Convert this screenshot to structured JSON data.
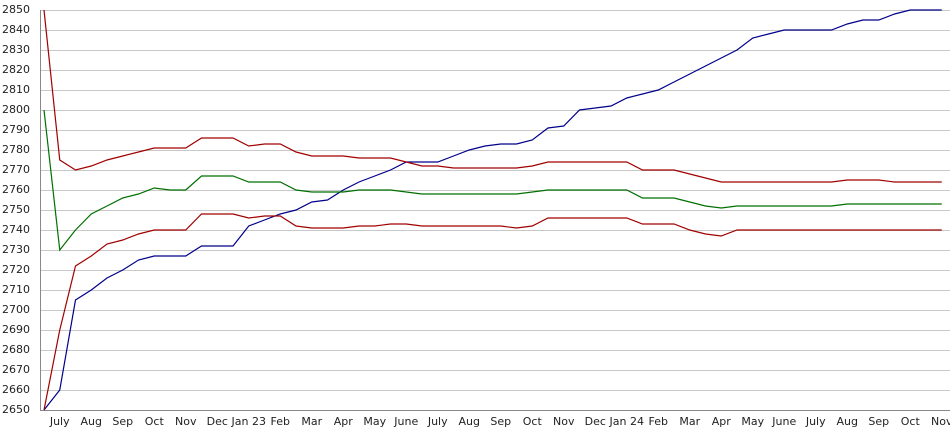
{
  "chart_data": {
    "type": "line",
    "categories": [
      null,
      "July",
      null,
      "Aug",
      null,
      "Sep",
      null,
      "Oct",
      null,
      "Nov",
      null,
      "Dec",
      null,
      "Jan 23",
      null,
      "Feb",
      null,
      "Mar",
      null,
      "Apr",
      null,
      "May",
      null,
      "June",
      null,
      "July",
      null,
      "Aug",
      null,
      "Sep",
      null,
      "Oct",
      null,
      "Nov",
      null,
      "Dec",
      null,
      "Jan 24",
      null,
      "Feb",
      null,
      "Mar",
      null,
      "Apr",
      null,
      "May",
      null,
      "June",
      null,
      "July",
      null,
      "Aug",
      null,
      "Sep",
      null,
      "Oct",
      null,
      "Nov"
    ],
    "series": [
      {
        "color": "#00008b",
        "values": [
          2650,
          2660,
          2705,
          2710,
          2716,
          2720,
          2725,
          2727,
          2727,
          2727,
          2732,
          2732,
          2732,
          2742,
          2745,
          2748,
          2750,
          2754,
          2755,
          2760,
          2764,
          2767,
          2770,
          2774,
          2774,
          2774,
          2777,
          2780,
          2782,
          2783,
          2783,
          2785,
          2791,
          2792,
          2800,
          2801,
          2802,
          2806,
          2808,
          2810,
          2814,
          2818,
          2822,
          2826,
          2830,
          2836,
          2838,
          2840,
          2840,
          2840,
          2840,
          2843,
          2845,
          2845,
          2848,
          2850,
          2850,
          2850
        ]
      },
      {
        "color": "#a00000",
        "values": [
          2850,
          2775,
          2770,
          2772,
          2775,
          2777,
          2779,
          2781,
          2781,
          2781,
          2786,
          2786,
          2786,
          2782,
          2783,
          2783,
          2779,
          2777,
          2777,
          2777,
          2776,
          2776,
          2776,
          2774,
          2772,
          2772,
          2771,
          2771,
          2771,
          2771,
          2771,
          2772,
          2774,
          2774,
          2774,
          2774,
          2774,
          2774,
          2770,
          2770,
          2770,
          2768,
          2766,
          2764,
          2764,
          2764,
          2764,
          2764,
          2764,
          2764,
          2764,
          2765,
          2765,
          2765,
          2764,
          2764,
          2764,
          2764
        ]
      },
      {
        "color": "#007000",
        "values": [
          2800,
          2730,
          2740,
          2748,
          2752,
          2756,
          2758,
          2761,
          2760,
          2760,
          2767,
          2767,
          2767,
          2764,
          2764,
          2764,
          2760,
          2759,
          2759,
          2759,
          2760,
          2760,
          2760,
          2759,
          2758,
          2758,
          2758,
          2758,
          2758,
          2758,
          2758,
          2759,
          2760,
          2760,
          2760,
          2760,
          2760,
          2760,
          2756,
          2756,
          2756,
          2754,
          2752,
          2751,
          2752,
          2752,
          2752,
          2752,
          2752,
          2752,
          2752,
          2753,
          2753,
          2753,
          2753,
          2753,
          2753,
          2753
        ]
      },
      {
        "color": "#a00000",
        "values": [
          2650,
          2690,
          2722,
          2727,
          2733,
          2735,
          2738,
          2740,
          2740,
          2740,
          2748,
          2748,
          2748,
          2746,
          2747,
          2747,
          2742,
          2741,
          2741,
          2741,
          2742,
          2742,
          2743,
          2743,
          2742,
          2742,
          2742,
          2742,
          2742,
          2742,
          2741,
          2742,
          2746,
          2746,
          2746,
          2746,
          2746,
          2746,
          2743,
          2743,
          2743,
          2740,
          2738,
          2737,
          2740,
          2740,
          2740,
          2740,
          2740,
          2740,
          2740,
          2740,
          2740,
          2740,
          2740,
          2740,
          2740,
          2740
        ]
      }
    ],
    "ylim": [
      2650,
      2850
    ],
    "yticks": [
      2650,
      2660,
      2670,
      2680,
      2690,
      2700,
      2710,
      2720,
      2730,
      2740,
      2750,
      2760,
      2770,
      2780,
      2790,
      2800,
      2810,
      2820,
      2830,
      2840,
      2850
    ],
    "grid": true
  }
}
